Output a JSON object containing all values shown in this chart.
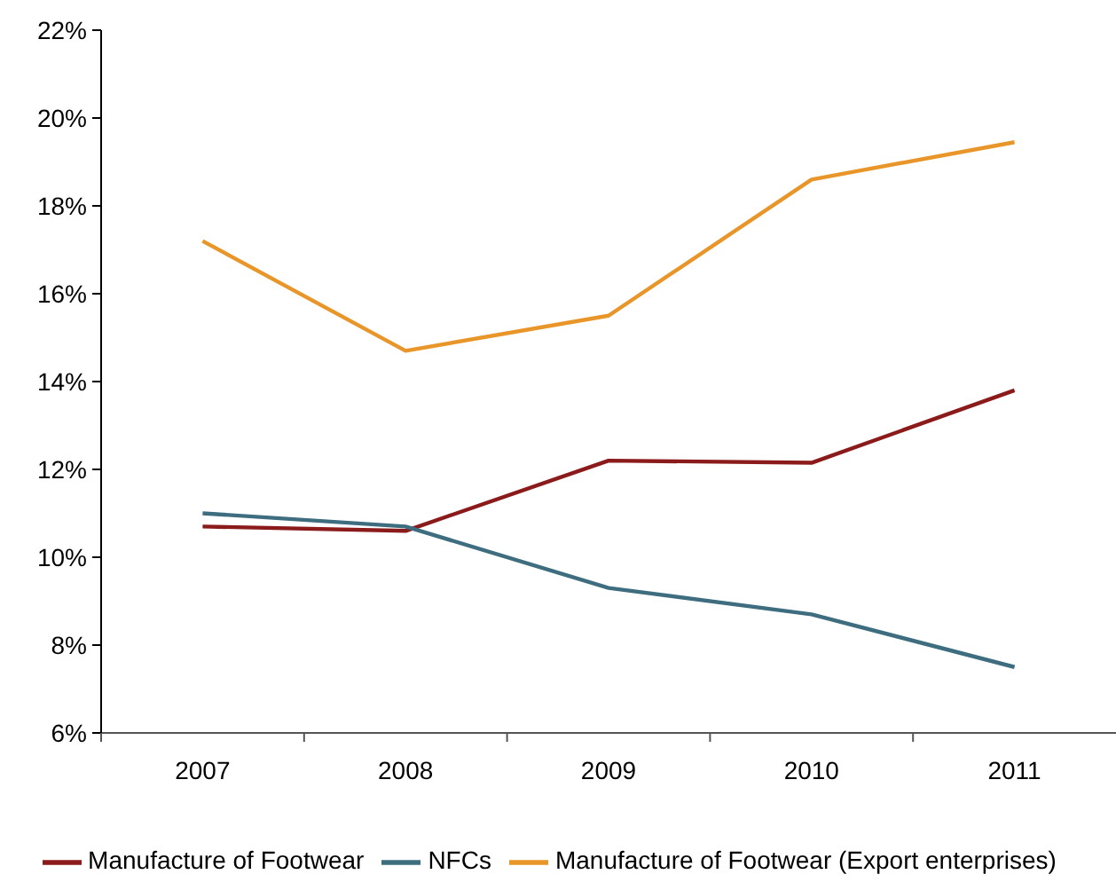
{
  "chart_data": {
    "type": "line",
    "categories": [
      "2007",
      "2008",
      "2009",
      "2010",
      "2011"
    ],
    "series": [
      {
        "name": "Manufacture of Footwear",
        "color": "#8b1a1a",
        "values": [
          10.7,
          10.6,
          12.2,
          12.15,
          13.8
        ]
      },
      {
        "name": "NFCs",
        "color": "#3e6d80",
        "values": [
          11.0,
          10.7,
          9.3,
          8.7,
          7.5
        ]
      },
      {
        "name": "Manufacture of Footwear (Export enterprises)",
        "color": "#e8962a",
        "values": [
          17.2,
          14.7,
          15.5,
          18.6,
          19.45
        ]
      }
    ],
    "ylim": [
      6,
      22
    ],
    "yticks": [
      {
        "value": 6,
        "label": "6%"
      },
      {
        "value": 8,
        "label": "8%"
      },
      {
        "value": 10,
        "label": "10%"
      },
      {
        "value": 12,
        "label": "12%"
      },
      {
        "value": 14,
        "label": "14%"
      },
      {
        "value": 16,
        "label": "16%"
      },
      {
        "value": 18,
        "label": "18%"
      },
      {
        "value": 20,
        "label": "20%"
      },
      {
        "value": 22,
        "label": "22%"
      }
    ],
    "grid": false,
    "legend": "bottom",
    "marker": "none",
    "line_style": "solid"
  }
}
